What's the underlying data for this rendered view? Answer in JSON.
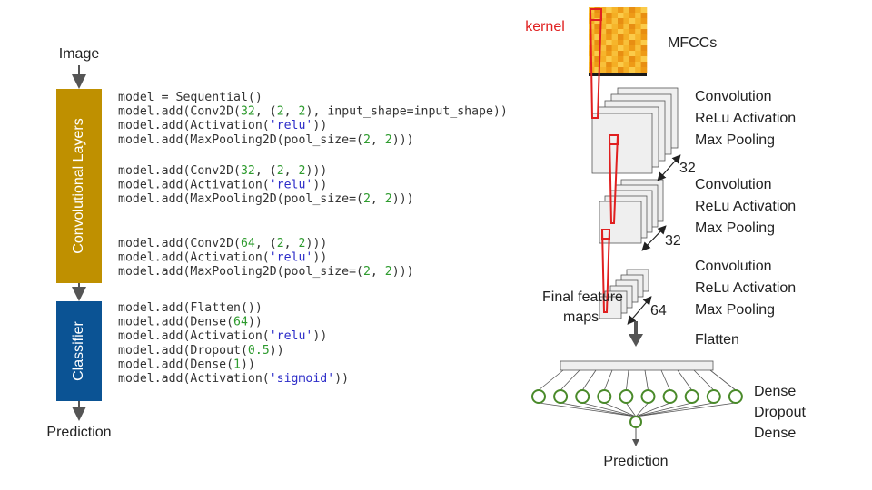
{
  "pipeline": {
    "input": "Image",
    "blocks": [
      "Convolutional Layers",
      "Classifier"
    ],
    "output": "Prediction"
  },
  "code": {
    "blocks": [
      [
        "model = Sequential()",
        "model.add(Conv2D(32, (2, 2), input_shape=input_shape))",
        "model.add(Activation('relu'))",
        "model.add(MaxPooling2D(pool_size=(2, 2)))"
      ],
      [
        "model.add(Conv2D(32, (2, 2)))",
        "model.add(Activation('relu'))",
        "model.add(MaxPooling2D(pool_size=(2, 2)))"
      ],
      [
        "model.add(Conv2D(64, (2, 2)))",
        "model.add(Activation('relu'))",
        "model.add(MaxPooling2D(pool_size=(2, 2)))"
      ],
      [
        "model.add(Flatten())",
        "model.add(Dense(64))",
        "model.add(Activation('relu'))",
        "model.add(Dropout(0.5))",
        "model.add(Dense(1))",
        "model.add(Activation('sigmoid'))"
      ]
    ]
  },
  "network": {
    "kernel": "kernel",
    "input": "MFCCs",
    "stages": [
      {
        "operations": [
          "Convolution",
          "ReLu Activation",
          "Max Pooling"
        ],
        "filters": 32
      },
      {
        "operations": [
          "Convolution",
          "ReLu Activation",
          "Max Pooling"
        ],
        "filters": 32
      },
      {
        "operations": [
          "Convolution",
          "ReLu Activation",
          "Max Pooling"
        ],
        "filters": 64
      }
    ],
    "feature_maps_label": [
      "Final feature",
      "maps"
    ],
    "flatten": "Flatten",
    "dense_layers": [
      "Dense",
      "Dropout",
      "Dense"
    ],
    "output": "Prediction"
  }
}
